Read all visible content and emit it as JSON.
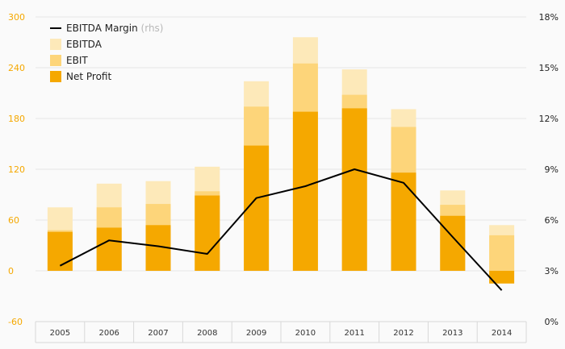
{
  "chart_data": {
    "type": "bar",
    "categories": [
      "2005",
      "2006",
      "2007",
      "2008",
      "2009",
      "2010",
      "2011",
      "2012",
      "2013",
      "2014"
    ],
    "series": [
      {
        "name": "EBITDA",
        "type": "bar",
        "axis": "left",
        "values": [
          75,
          103,
          106,
          123,
          224,
          276,
          238,
          191,
          95,
          54
        ],
        "color": "#fde9b9"
      },
      {
        "name": "EBIT",
        "type": "bar",
        "axis": "left",
        "values": [
          48,
          75,
          79,
          94,
          194,
          245,
          208,
          170,
          78,
          42
        ],
        "color": "#fdd57a"
      },
      {
        "name": "Net Profit",
        "type": "bar",
        "axis": "left",
        "values": [
          46,
          51,
          54,
          89,
          148,
          188,
          192,
          116,
          65,
          -15
        ],
        "color": "#f5a800"
      },
      {
        "name": "EBITDA Margin",
        "type": "line",
        "axis": "right",
        "values": [
          3.3,
          4.8,
          4.45,
          4.0,
          7.3,
          8.0,
          9.0,
          8.2,
          5.0,
          1.85
        ],
        "color": "#000000"
      }
    ],
    "legend": {
      "position": "top-left",
      "items": [
        {
          "label": "EBITDA Margin",
          "suffix": "(rhs)",
          "marker": "line",
          "color": "#000000"
        },
        {
          "label": "EBITDA",
          "suffix": "",
          "marker": "square",
          "color": "#fde9b9"
        },
        {
          "label": "EBIT",
          "suffix": "",
          "marker": "square",
          "color": "#fdd57a"
        },
        {
          "label": "Net Profit",
          "suffix": "",
          "marker": "square",
          "color": "#f5a800"
        }
      ]
    },
    "y_left": {
      "ylim": [
        -60,
        300
      ],
      "ticks": [
        "-60",
        "0",
        "60",
        "120",
        "180",
        "240",
        "300"
      ],
      "color": "#f5a800"
    },
    "y_right": {
      "ylim": [
        0,
        18
      ],
      "ticks": [
        "0%",
        "3%",
        "6%",
        "9%",
        "12%",
        "15%",
        "18%"
      ],
      "color": "#222222"
    },
    "grid": true,
    "gridline_color": "#e6e6e6"
  }
}
